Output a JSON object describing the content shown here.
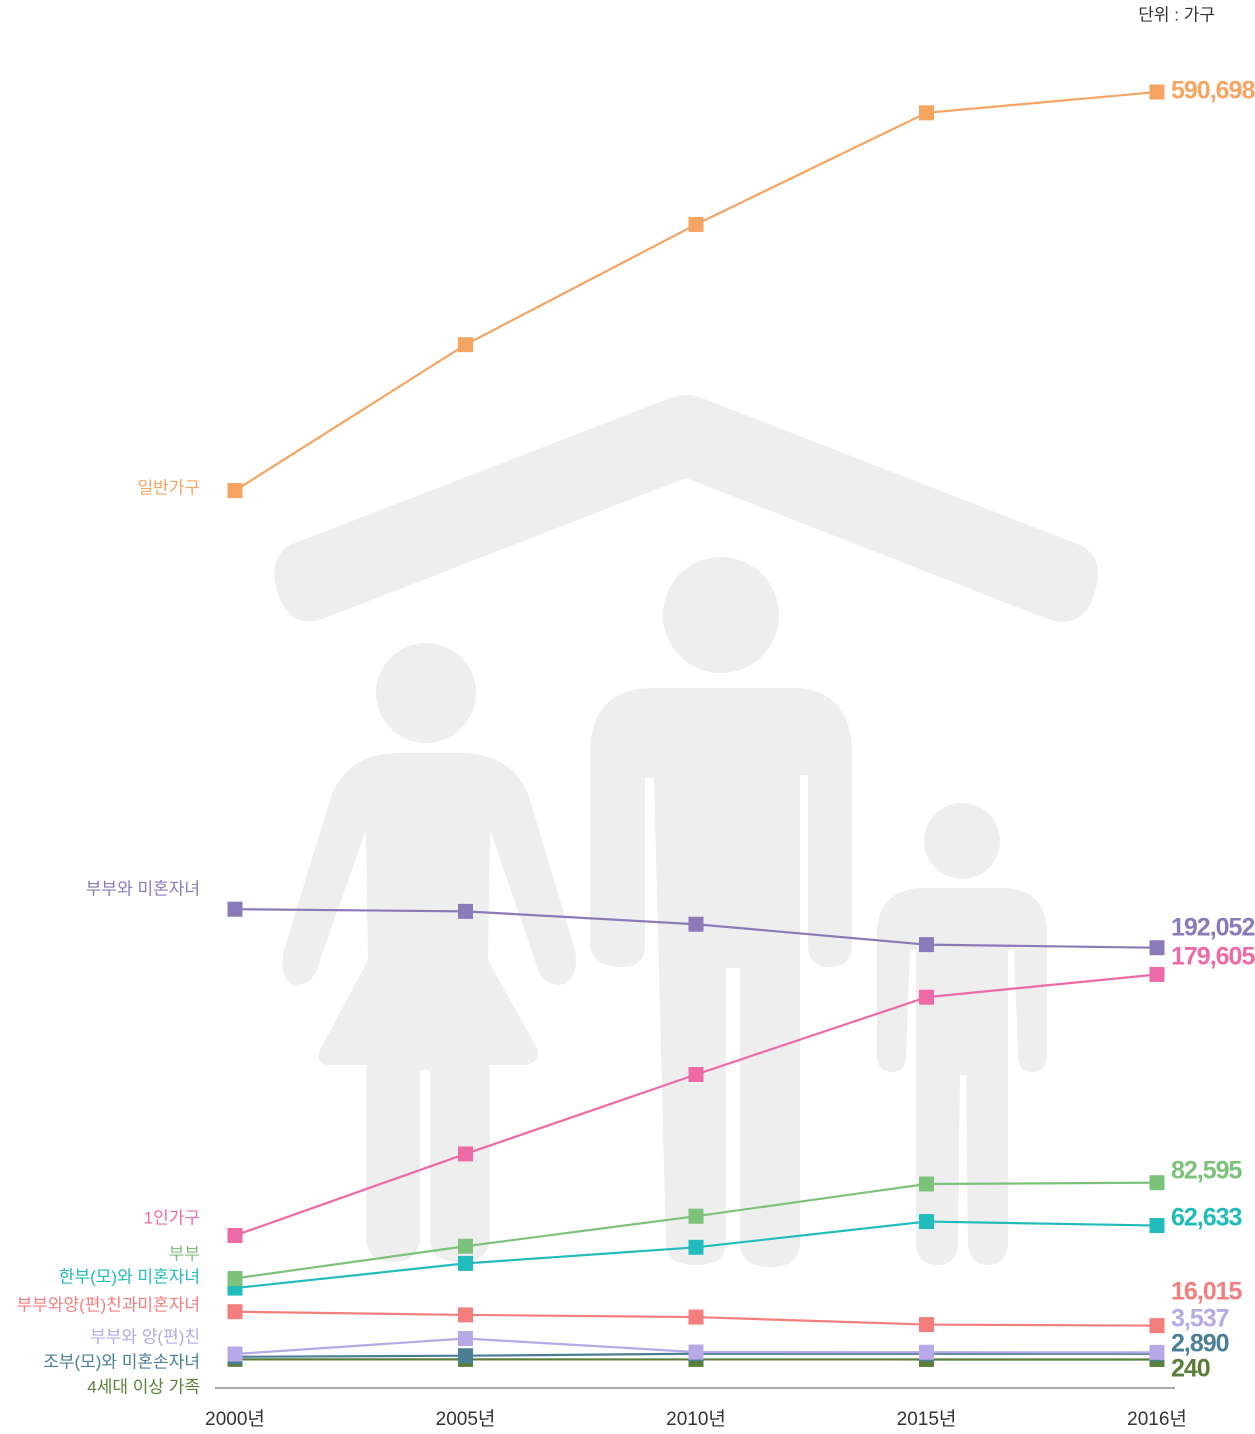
{
  "chart_data": {
    "type": "line",
    "unit": "단위 : 가구",
    "categories": [
      "2000년",
      "2005년",
      "2010년",
      "2015년",
      "2016년"
    ],
    "series": [
      {
        "name": "일반가구",
        "color": "#f5a462",
        "values": [
          405000,
          473000,
          529000,
          581000,
          590698
        ],
        "value_labels": [
          null,
          null,
          null,
          null,
          "590,698"
        ]
      },
      {
        "name": "부부와 미혼자녀",
        "color": "#8b7ab8",
        "values": [
          210000,
          209000,
          203000,
          193500,
          192052
        ],
        "value_labels": [
          null,
          null,
          null,
          null,
          "192,052"
        ]
      },
      {
        "name": "1인가구",
        "color": "#ee6aa7",
        "values": [
          58000,
          96000,
          133000,
          169000,
          179605
        ],
        "value_labels": [
          null,
          null,
          null,
          null,
          "179,605"
        ]
      },
      {
        "name": "부부",
        "color": "#7dc27a",
        "values": [
          38000,
          53000,
          67000,
          82000,
          82595
        ],
        "value_labels": [
          null,
          null,
          null,
          null,
          "82,595"
        ]
      },
      {
        "name": "한부(모)와 미혼자녀",
        "color": "#22bbbb",
        "values": [
          33500,
          45000,
          52500,
          64500,
          62633
        ],
        "value_labels": [
          null,
          null,
          null,
          null,
          "62,633"
        ]
      },
      {
        "name": "부부와양(편)친과미혼자녀",
        "color": "#f47e7e",
        "values": [
          22500,
          21000,
          20000,
          16500,
          16015
        ],
        "value_labels": [
          null,
          null,
          null,
          null,
          "16,015"
        ]
      },
      {
        "name": "부부와 양(편)친",
        "color": "#b7a8e6",
        "values": [
          2800,
          10000,
          3700,
          3600,
          3537
        ],
        "value_labels": [
          null,
          null,
          null,
          null,
          "3,537"
        ]
      },
      {
        "name": "조부(모)와 미혼손자녀",
        "color": "#4a7f95",
        "values": [
          1500,
          2000,
          2900,
          2900,
          2890
        ],
        "value_labels": [
          null,
          null,
          null,
          null,
          "2,890"
        ]
      },
      {
        "name": "4세대 이상 가족",
        "color": "#5b7f3a",
        "values": [
          300,
          280,
          260,
          250,
          240
        ]
      }
    ]
  }
}
